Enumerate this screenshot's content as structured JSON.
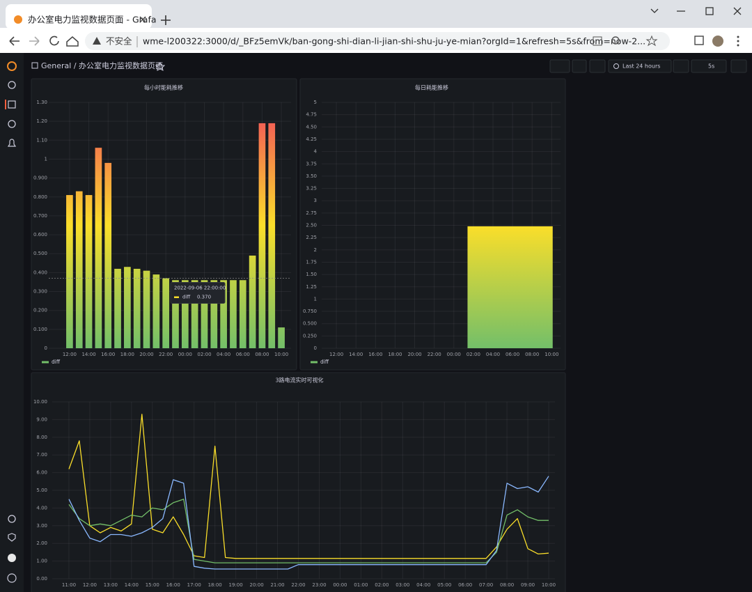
{
  "browser": {
    "tab_title": "办公室电力监视数据页面 - Grafa",
    "security": "不安全",
    "url": "wme-l200322:3000/d/_BFz5emVk/ban-gong-shi-dian-li-jian-shi-shu-ju-ye-mian?orgId=1&refresh=5s&from=now-2..."
  },
  "header": {
    "breadcrumb": "General / 办公室电力监视数据页面",
    "time_range": "Last 24 hours",
    "refresh": "5s"
  },
  "chart_data": [
    {
      "type": "bar",
      "title": "每小时能耗推移",
      "gradient": "value",
      "color_scheme": [
        "#73bf69",
        "#fade2a",
        "#f2495c"
      ],
      "categories": [
        "12:00",
        null,
        "14:00",
        null,
        "16:00",
        null,
        "18:00",
        null,
        "20:00",
        null,
        "22:00",
        null,
        "00:00",
        null,
        "02:00",
        null,
        "04:00",
        null,
        "06:00",
        null,
        "08:00",
        null,
        "10:00"
      ],
      "series": [
        {
          "name": "diff",
          "color": "#73bf69",
          "values": [
            0.81,
            0.83,
            0.81,
            1.06,
            0.98,
            0.42,
            0.43,
            0.42,
            0.41,
            0.39,
            0.37,
            0.36,
            0.36,
            0.36,
            0.36,
            0.36,
            0.36,
            0.36,
            0.36,
            0.49,
            1.19,
            1.19,
            0.11
          ]
        }
      ],
      "ylim": [
        0,
        1.3
      ],
      "yticks": [
        0,
        {
          "value": 0.1,
          "label": "0.100"
        },
        {
          "value": 0.2,
          "label": "0.200"
        },
        {
          "value": 0.3,
          "label": "0.300"
        },
        {
          "value": 0.4,
          "label": "0.400"
        },
        {
          "value": 0.5,
          "label": "0.500"
        },
        {
          "value": 0.6,
          "label": "0.600"
        },
        {
          "value": 0.7,
          "label": "0.700"
        },
        {
          "value": 0.8,
          "label": "0.800"
        },
        {
          "value": 0.9,
          "label": "0.900"
        },
        1,
        {
          "value": 1.1,
          "label": "1.10"
        },
        {
          "value": 1.2,
          "label": "1.20"
        },
        {
          "value": 1.3,
          "label": "1.30"
        }
      ],
      "grid": true,
      "tooltip": {
        "time": "2022-09-06 22:00:00",
        "series": "diff",
        "value": 0.37,
        "value_label": "0.370",
        "color": "#fade2a"
      }
    },
    {
      "type": "histogram",
      "title": "每日耗能推移",
      "gradient": "bar",
      "color_scheme": [
        "#73bf69",
        "#fade2a"
      ],
      "bins": [
        13.4,
        22.1
      ],
      "series": [
        {
          "name": "diff",
          "color": "#73bf69",
          "values": [
            2.48
          ]
        }
      ],
      "xlim": [
        -1.5,
        22.9
      ],
      "xticks": [
        {
          "value": 0,
          "label": "12:00"
        },
        {
          "value": 2,
          "label": "14:00"
        },
        {
          "value": 4,
          "label": "16:00"
        },
        {
          "value": 6,
          "label": "18:00"
        },
        {
          "value": 8,
          "label": "20:00"
        },
        {
          "value": 10,
          "label": "22:00"
        },
        {
          "value": 12,
          "label": "00:00"
        },
        {
          "value": 14,
          "label": "02:00"
        },
        {
          "value": 16,
          "label": "04:00"
        },
        {
          "value": 18,
          "label": "06:00"
        },
        {
          "value": 20,
          "label": "08:00"
        },
        {
          "value": 22,
          "label": "10:00"
        }
      ],
      "ylim": [
        0,
        5
      ],
      "yticks": [
        0,
        {
          "value": 0.25,
          "label": "0.250"
        },
        {
          "value": 0.5,
          "label": "0.500"
        },
        {
          "value": 0.75,
          "label": "0.750"
        },
        1,
        1.25,
        {
          "value": 1.5,
          "label": "1.50"
        },
        1.75,
        2,
        2.25,
        {
          "value": 2.5,
          "label": "2.50"
        },
        2.75,
        3,
        3.25,
        {
          "value": 3.5,
          "label": "3.50"
        },
        3.75,
        4,
        4.25,
        {
          "value": 4.5,
          "label": "4.50"
        },
        4.75,
        5
      ],
      "grid": true
    },
    {
      "type": "line",
      "title": "3路电流实时可视化",
      "x": [
        0,
        0.5,
        1,
        1.5,
        2,
        2.5,
        3,
        3.5,
        4,
        4.5,
        5,
        5.5,
        6,
        6.5,
        7,
        7.5,
        8,
        8.5,
        9,
        9.5,
        10,
        10.5,
        11,
        11.5,
        12,
        12.5,
        13,
        13.5,
        14,
        14.5,
        15,
        15.5,
        16,
        16.5,
        17,
        17.5,
        18,
        18.5,
        19,
        19.5,
        20,
        20.5,
        21,
        21.5,
        22,
        22.5,
        23
      ],
      "series": [
        {
          "color": "#fade2a",
          "values": [
            6.2,
            7.8,
            3.0,
            2.6,
            2.9,
            2.7,
            3.1,
            9.3,
            2.8,
            2.6,
            3.5,
            2.5,
            1.3,
            1.2,
            7.5,
            1.2,
            1.15,
            1.15,
            1.15,
            1.15,
            1.15,
            1.15,
            1.15,
            1.15,
            1.15,
            1.15,
            1.15,
            1.15,
            1.15,
            1.15,
            1.15,
            1.15,
            1.15,
            1.15,
            1.15,
            1.15,
            1.15,
            1.15,
            1.15,
            1.15,
            1.15,
            1.8,
            2.8,
            3.4,
            1.7,
            1.4,
            1.45
          ]
        },
        {
          "color": "#73bf69",
          "values": [
            4.2,
            3.4,
            3.0,
            3.1,
            3.0,
            3.3,
            3.6,
            3.5,
            4.0,
            3.9,
            4.3,
            4.5,
            1.1,
            1.0,
            0.9,
            0.9,
            0.9,
            0.9,
            0.9,
            0.9,
            0.9,
            0.9,
            0.9,
            0.9,
            0.9,
            0.9,
            0.9,
            0.9,
            0.9,
            0.9,
            0.9,
            0.9,
            0.9,
            0.9,
            0.9,
            0.9,
            0.9,
            0.9,
            0.9,
            0.9,
            0.9,
            1.5,
            3.6,
            3.9,
            3.5,
            3.3,
            3.3
          ]
        },
        {
          "color": "#8ab8ff",
          "values": [
            4.5,
            3.3,
            2.3,
            2.1,
            2.5,
            2.5,
            2.4,
            2.6,
            2.9,
            3.4,
            5.6,
            5.4,
            0.7,
            0.6,
            0.55,
            0.55,
            0.55,
            0.55,
            0.55,
            0.55,
            0.55,
            0.55,
            0.8,
            0.8,
            0.8,
            0.8,
            0.8,
            0.8,
            0.8,
            0.8,
            0.8,
            0.8,
            0.8,
            0.8,
            0.8,
            0.8,
            0.8,
            0.8,
            0.8,
            0.8,
            0.8,
            1.6,
            5.4,
            5.1,
            5.2,
            4.9,
            5.8
          ]
        }
      ],
      "xlim": [
        -0.8,
        23.3
      ],
      "xticks": [
        {
          "value": 0,
          "label": "11:00"
        },
        {
          "value": 1,
          "label": "12:00"
        },
        {
          "value": 2,
          "label": "13:00"
        },
        {
          "value": 3,
          "label": "14:00"
        },
        {
          "value": 4,
          "label": "15:00"
        },
        {
          "value": 5,
          "label": "16:00"
        },
        {
          "value": 6,
          "label": "17:00"
        },
        {
          "value": 7,
          "label": "18:00"
        },
        {
          "value": 8,
          "label": "19:00"
        },
        {
          "value": 9,
          "label": "20:00"
        },
        {
          "value": 10,
          "label": "21:00"
        },
        {
          "value": 11,
          "label": "22:00"
        },
        {
          "value": 12,
          "label": "23:00"
        },
        {
          "value": 13,
          "label": "00:00"
        },
        {
          "value": 14,
          "label": "01:00"
        },
        {
          "value": 15,
          "label": "02:00"
        },
        {
          "value": 16,
          "label": "03:00"
        },
        {
          "value": 17,
          "label": "04:00"
        },
        {
          "value": 18,
          "label": "05:00"
        },
        {
          "value": 19,
          "label": "06:00"
        },
        {
          "value": 20,
          "label": "07:00"
        },
        {
          "value": 21,
          "label": "08:00"
        },
        {
          "value": 22,
          "label": "09:00"
        },
        {
          "value": 23,
          "label": "10:00"
        }
      ],
      "ylim": [
        0,
        10
      ],
      "yticks": [
        {
          "value": 0,
          "label": "0.00"
        },
        {
          "value": 1,
          "label": "1.00"
        },
        {
          "value": 2,
          "label": "2.00"
        },
        {
          "value": 3,
          "label": "3.00"
        },
        {
          "value": 4,
          "label": "4.00"
        },
        {
          "value": 5,
          "label": "5.00"
        },
        {
          "value": 6,
          "label": "6.00"
        },
        {
          "value": 7,
          "label": "7.00"
        },
        {
          "value": 8,
          "label": "8.00"
        },
        {
          "value": 9,
          "label": "9.00"
        },
        {
          "value": 10,
          "label": "10.00"
        }
      ],
      "grid": true
    }
  ]
}
